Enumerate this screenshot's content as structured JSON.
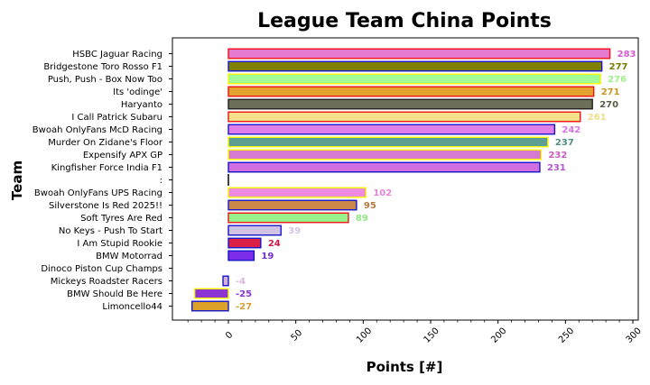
{
  "chart_data": {
    "type": "bar",
    "orientation": "horizontal",
    "title": "League Team China Points",
    "xlabel": "Points [#]",
    "ylabel": "Team",
    "xlim": [
      -30,
      305
    ],
    "x_ticks": [
      0,
      50,
      100,
      150,
      200,
      250,
      300
    ],
    "grid": false,
    "categories": [
      "HSBC Jaguar Racing",
      "Bridgestone Toro Rosso F1",
      "Push, Push - Box Now Too",
      "Its 'odinge'",
      "Haryanto",
      "I Call Patrick Subaru",
      "Bwoah OnlyFans McD Racing",
      "Murder On Zidane's Floor",
      "Expensify APX GP",
      "Kingfisher Force India F1",
      ":",
      "Bwoah OnlyFans UPS Racing",
      "Silverstone Is Red 2025!!",
      "Soft Tyres Are Red",
      "No Keys - Push To Start",
      "I Am Stupid Rookie",
      "BMW Motorrad",
      "Dinoco Piston Cup Champs",
      "Mickeys Roadster Racers",
      "BMW Should Be Here",
      "Limoncello44"
    ],
    "values": [
      283,
      277,
      276,
      271,
      270,
      261,
      242,
      237,
      232,
      231,
      0,
      102,
      95,
      89,
      39,
      24,
      19,
      0,
      -4,
      -25,
      -27
    ],
    "value_labels": [
      "283",
      "277",
      "276",
      "271",
      "270",
      "261",
      "242",
      "237",
      "232",
      "231",
      "",
      "102",
      "95",
      "89",
      "39",
      "24",
      "19",
      "",
      "-4",
      "-25",
      "-27"
    ],
    "fill_colors": [
      "#e67ad0",
      "#808000",
      "#a2fb94",
      "#e3a22f",
      "#6e6e5a",
      "#f5e08a",
      "#e07fe8",
      "#5c9e92",
      "#d67ad0",
      "#cf6fe0",
      "#e8e8e8",
      "#ec8be0",
      "#c9874a",
      "#98f08a",
      "#cfc2e2",
      "#dc1f46",
      "#7b2dea",
      "#ffffff",
      "#d3b0d8",
      "#8b35d2",
      "#dba128"
    ],
    "edge_colors": [
      "#ee1111",
      "#1616c8",
      "#f8f800",
      "#ee1111",
      "#202020",
      "#ee1111",
      "#1616c8",
      "#f8f800",
      "#f8f800",
      "#1616c8",
      "#000000",
      "#f8f800",
      "#1616c8",
      "#ee1111",
      "#1616c8",
      "#1616c8",
      "#1616c8",
      "#f8f800",
      "#1616c8",
      "#f8f800",
      "#1616c8"
    ],
    "label_colors": [
      "#d45ccf",
      "#7a7a00",
      "#9ef08a",
      "#c9951f",
      "#5a5a48",
      "#ede08a",
      "#d773e6",
      "#4e8f85",
      "#c55cba",
      "#b555d6",
      "#000000",
      "#e784dc",
      "#b57a40",
      "#8fe683",
      "#d6c2e6",
      "#d11745",
      "#7230d6",
      "#000000",
      "#d9b7dc",
      "#8a36d6",
      "#d6a033"
    ]
  }
}
